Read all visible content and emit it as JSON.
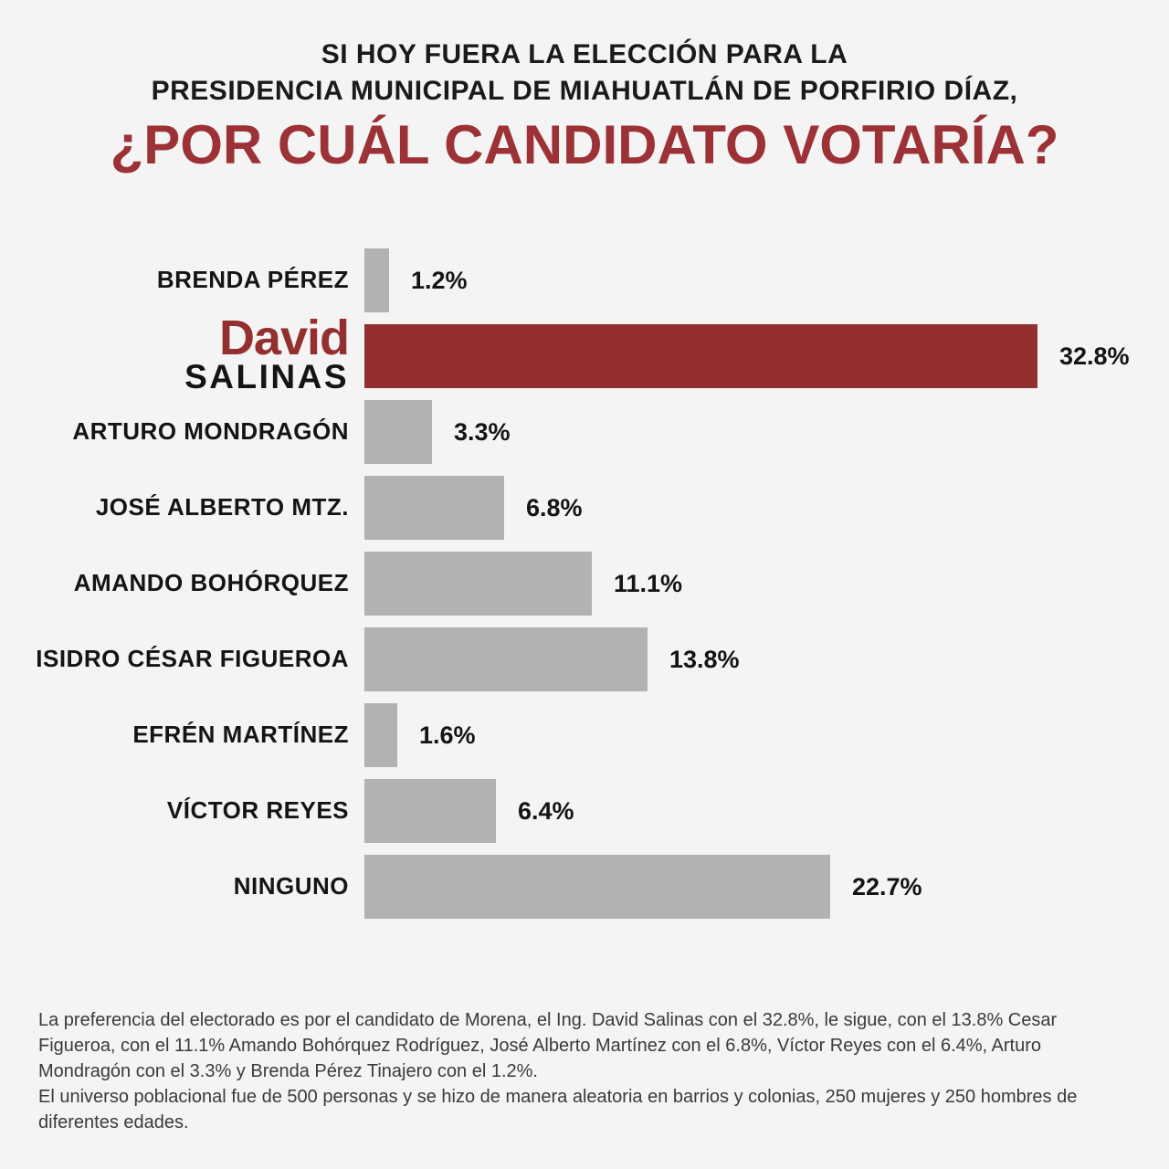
{
  "page": {
    "background_color": "#f5f4f5"
  },
  "title": {
    "line1": "SI HOY FUERA LA ELECCIÓN PARA LA",
    "line2": "PRESIDENCIA MUNICIPAL DE MIAHUATLÁN DE PORFIRIO DÍAZ,",
    "question": "¿POR CUÁL CANDIDATO VOTARÍA?",
    "accent_color": "#9c3235"
  },
  "chart_data": {
    "type": "bar",
    "orientation": "horizontal",
    "title": "¿POR CUÁL CANDIDATO VOTARÍA?",
    "xlim": [
      0,
      33
    ],
    "grid": false,
    "categories": [
      "BRENDA PÉREZ",
      "DAVID SALINAS",
      "ARTURO MONDRAGÓN",
      "JOSÉ ALBERTO MTZ.",
      "AMANDO BOHÓRQUEZ",
      "ISIDRO CÉSAR FIGUEROA",
      "EFRÉN MARTÍNEZ",
      "VÍCTOR REYES",
      "NINGUNO"
    ],
    "values": [
      1.2,
      32.8,
      3.3,
      6.8,
      11.1,
      13.8,
      1.6,
      6.4,
      22.7
    ],
    "value_labels": [
      "1.2%",
      "32.8%",
      "3.3%",
      "6.8%",
      "11.1%",
      "13.8%",
      "1.6%",
      "6.4%",
      "22.7%"
    ],
    "highlight_index": 1,
    "highlight_label_lines": [
      "David",
      "SALINAS"
    ],
    "bar_color_default": "#b3b2b3",
    "bar_color_highlight": "#93302f"
  },
  "footer": {
    "paragraph1": "La preferencia del electorado es por el candidato de Morena, el Ing. David Salinas con el 32.8%, le sigue, con el 13.8% Cesar Figueroa, con el 11.1% Amando Bohórquez Rodríguez, José Alberto Martínez con el 6.8%, Víctor Reyes con el 6.4%, Arturo Mondragón con el 3.3% y Brenda Pérez Tinajero con el 1.2%.",
    "paragraph2": "El universo poblacional fue de 500 personas y se hizo de manera aleatoria en barrios y colonias, 250 mujeres y 250 hombres de diferentes edades."
  }
}
